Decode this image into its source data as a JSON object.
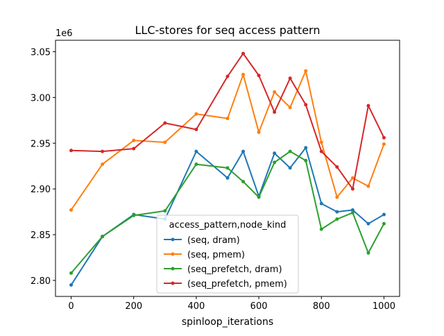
{
  "chart_data": {
    "type": "line",
    "title": "LLC-stores for seq access pattern",
    "xlabel": "spinloop_iterations",
    "ylabel": "",
    "y_offset_label": "1e6",
    "xlim": [
      -50,
      1050
    ],
    "ylim": [
      2.7825,
      3.0625
    ],
    "x_ticks": [
      0,
      200,
      400,
      600,
      800,
      1000
    ],
    "x_tick_labels": [
      "0",
      "200",
      "400",
      "600",
      "800",
      "1000"
    ],
    "y_ticks": [
      2.8,
      2.85,
      2.9,
      2.95,
      3.0,
      3.05
    ],
    "y_tick_labels": [
      "2.80",
      "2.85",
      "2.90",
      "2.95",
      "3.00",
      "3.05"
    ],
    "grid": false,
    "legend": {
      "title": "access_pattern,node_kind",
      "placement": "lower-center"
    },
    "x": [
      0,
      100,
      200,
      300,
      400,
      500,
      550,
      600,
      650,
      700,
      750,
      800,
      850,
      900,
      950,
      1000
    ],
    "series": [
      {
        "name": "(seq, dram)",
        "color": "#1f77b4",
        "values": [
          2.795,
          2.848,
          2.872,
          2.867,
          2.941,
          2.912,
          2.941,
          2.892,
          2.939,
          2.923,
          2.945,
          2.884,
          2.875,
          2.877,
          2.862,
          2.872
        ]
      },
      {
        "name": "(seq, pmem)",
        "color": "#ff7f0e",
        "values": [
          2.877,
          2.927,
          2.953,
          2.951,
          2.982,
          2.977,
          3.025,
          2.962,
          3.006,
          2.989,
          3.029,
          2.951,
          2.891,
          2.912,
          2.903,
          2.949
        ]
      },
      {
        "name": "(seq_prefetch, dram)",
        "color": "#2ca02c",
        "values": [
          2.808,
          2.848,
          2.871,
          2.876,
          2.927,
          2.923,
          2.908,
          2.891,
          2.929,
          2.941,
          2.931,
          2.856,
          2.867,
          2.874,
          2.83,
          2.862
        ]
      },
      {
        "name": "(seq_prefetch, pmem)",
        "color": "#d62728",
        "values": [
          2.942,
          2.941,
          2.944,
          2.972,
          2.965,
          3.023,
          3.048,
          3.024,
          2.984,
          3.021,
          2.992,
          2.941,
          2.924,
          2.9,
          2.991,
          2.956
        ]
      }
    ]
  }
}
